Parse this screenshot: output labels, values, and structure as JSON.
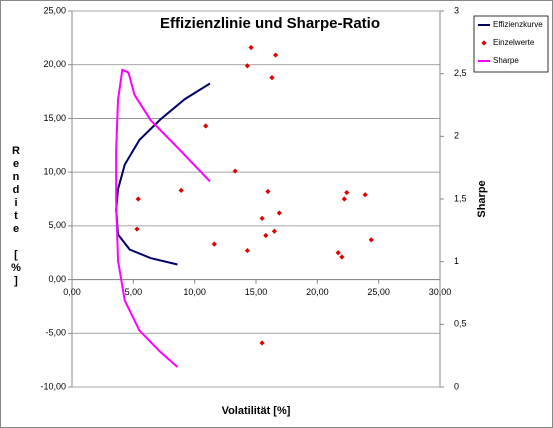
{
  "chart_data": {
    "type": "scatter",
    "title": "Effizienzlinie und Sharpe-Ratio",
    "x_label": "Volatilität [%]",
    "y_label": "Rendite [%]",
    "y2_label": "Sharpe",
    "xlim": [
      0,
      30
    ],
    "xticks": [
      {
        "value": 0,
        "label": "0,00"
      },
      {
        "value": 5,
        "label": "5,00"
      },
      {
        "value": 10,
        "label": "10,00"
      },
      {
        "value": 15,
        "label": "15,00"
      },
      {
        "value": 20,
        "label": "20,00"
      },
      {
        "value": 25,
        "label": "25,00"
      },
      {
        "value": 30,
        "label": "30,00"
      }
    ],
    "ylim": [
      -10,
      25
    ],
    "yticks": [
      {
        "value": -10,
        "label": "-10,00"
      },
      {
        "value": -5,
        "label": "-5,00"
      },
      {
        "value": 0,
        "label": "0,00"
      },
      {
        "value": 5,
        "label": "5,00"
      },
      {
        "value": 10,
        "label": "10,00"
      },
      {
        "value": 15,
        "label": "15,00"
      },
      {
        "value": 20,
        "label": "20,00"
      },
      {
        "value": 25,
        "label": "25,00"
      }
    ],
    "y2lim": [
      0,
      3
    ],
    "y2ticks": [
      0,
      {
        "value": 0.5,
        "label": "0,5"
      },
      1,
      {
        "value": 1.5,
        "label": "1,5"
      },
      2,
      {
        "value": 2.5,
        "label": "2,5"
      },
      3
    ],
    "grid": true,
    "legend": "top-right",
    "series": [
      {
        "name": "Effizienzkurve",
        "color": "#000066",
        "mode": "line",
        "x": [
          11.25,
          9.2,
          7.2,
          5.5,
          4.3,
          3.75,
          3.6,
          3.75,
          4.7,
          6.4,
          8.6
        ],
        "values": [
          18.25,
          16.8,
          14.9,
          13.0,
          10.7,
          8.4,
          6.5,
          4.2,
          2.8,
          2.0,
          1.4
        ]
      },
      {
        "name": "Einzelwerte",
        "color": "#dd0000",
        "mode": "markers",
        "x": [
          14.6,
          16.6,
          14.3,
          16.3,
          10.9,
          13.3,
          8.9,
          15.97,
          5.4,
          22.4,
          23.9,
          22.2,
          16.9,
          15.5,
          16.5,
          15.8,
          5.3,
          11.6,
          14.3,
          21.7,
          22.0,
          24.4,
          15.5
        ],
        "values": [
          21.6,
          20.9,
          19.9,
          18.8,
          14.3,
          10.1,
          8.3,
          8.2,
          7.5,
          8.1,
          7.9,
          7.5,
          6.2,
          5.7,
          4.5,
          4.1,
          4.7,
          3.3,
          2.7,
          2.5,
          2.1,
          3.7,
          -5.9
        ]
      },
      {
        "name": "Sharpe",
        "color": "#ff00ff",
        "mode": "line",
        "axis": "y2",
        "x": [
          11.25,
          8.8,
          6.4,
          5.1,
          4.6,
          4.1,
          3.75,
          3.6,
          3.6,
          3.75,
          4.3,
          5.5,
          7.2,
          8.6
        ],
        "values": [
          1.64,
          1.89,
          2.13,
          2.33,
          2.51,
          2.53,
          2.29,
          1.89,
          1.49,
          1.01,
          0.69,
          0.45,
          0.28,
          0.16
        ]
      }
    ]
  }
}
